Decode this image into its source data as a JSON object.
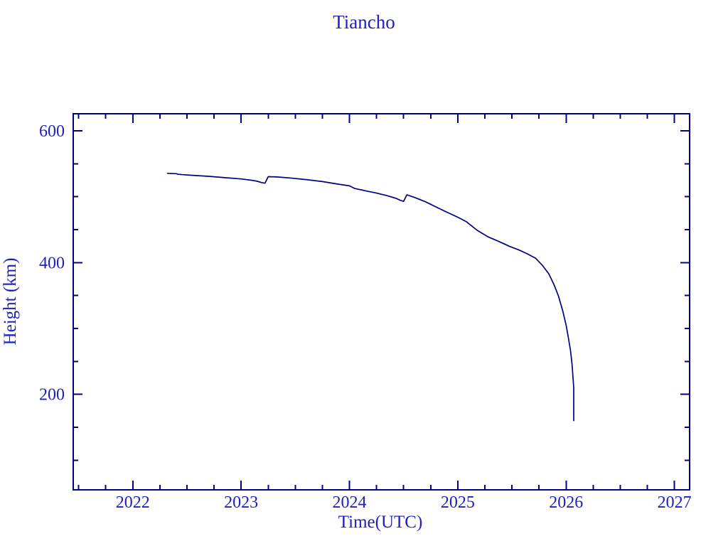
{
  "page": {
    "background": "#ffffff"
  },
  "chart_data": {
    "type": "line",
    "title": "Tiancho",
    "xlabel": "Time(UTC)",
    "ylabel": "Height (km)",
    "xlim": [
      2021.45,
      2027.14
    ],
    "ylim": [
      55,
      626
    ],
    "x_major_ticks": [
      2022,
      2023,
      2024,
      2025,
      2026,
      2027
    ],
    "x_minor_tick_step": 0.25,
    "y_major_ticks": [
      200,
      400,
      600
    ],
    "y_minor_tick_step": 50,
    "grid": false,
    "legend": "none",
    "colors": {
      "line": "#000080",
      "axis": "#000082",
      "text": "#2020c0",
      "background": "#ffffff"
    },
    "series": [
      {
        "name": "height_km",
        "points": [
          [
            2022.32,
            535.5
          ],
          [
            2022.4,
            535.0
          ],
          [
            2022.42,
            534.0
          ],
          [
            2022.55,
            532.5
          ],
          [
            2022.7,
            531.0
          ],
          [
            2022.85,
            529.0
          ],
          [
            2023.0,
            527.0
          ],
          [
            2023.1,
            525.0
          ],
          [
            2023.15,
            523.5
          ],
          [
            2023.19,
            521.5
          ],
          [
            2023.22,
            520.5
          ],
          [
            2023.25,
            530.5
          ],
          [
            2023.33,
            530.0
          ],
          [
            2023.45,
            528.5
          ],
          [
            2023.6,
            526.0
          ],
          [
            2023.75,
            523.0
          ],
          [
            2023.9,
            519.0
          ],
          [
            2024.0,
            516.5
          ],
          [
            2024.05,
            512.5
          ],
          [
            2024.15,
            509.0
          ],
          [
            2024.25,
            505.5
          ],
          [
            2024.35,
            501.5
          ],
          [
            2024.43,
            497.5
          ],
          [
            2024.47,
            494.5
          ],
          [
            2024.5,
            493.0
          ],
          [
            2024.53,
            503.0
          ],
          [
            2024.6,
            499.0
          ],
          [
            2024.7,
            492.5
          ],
          [
            2024.8,
            484.5
          ],
          [
            2024.9,
            476.5
          ],
          [
            2025.0,
            469.0
          ],
          [
            2025.08,
            462.0
          ],
          [
            2025.18,
            449.0
          ],
          [
            2025.28,
            439.0
          ],
          [
            2025.38,
            432.0
          ],
          [
            2025.48,
            424.5
          ],
          [
            2025.56,
            419.5
          ],
          [
            2025.64,
            413.5
          ],
          [
            2025.72,
            406.5
          ],
          [
            2025.78,
            396.0
          ],
          [
            2025.84,
            383.0
          ],
          [
            2025.89,
            366.0
          ],
          [
            2025.93,
            349.0
          ],
          [
            2025.97,
            326.0
          ],
          [
            2026.0,
            305.0
          ],
          [
            2026.02,
            287.0
          ],
          [
            2026.04,
            267.0
          ],
          [
            2026.055,
            245.0
          ],
          [
            2026.065,
            222.0
          ],
          [
            2026.07,
            210.0
          ],
          [
            2026.07,
            160.0
          ]
        ]
      }
    ]
  }
}
